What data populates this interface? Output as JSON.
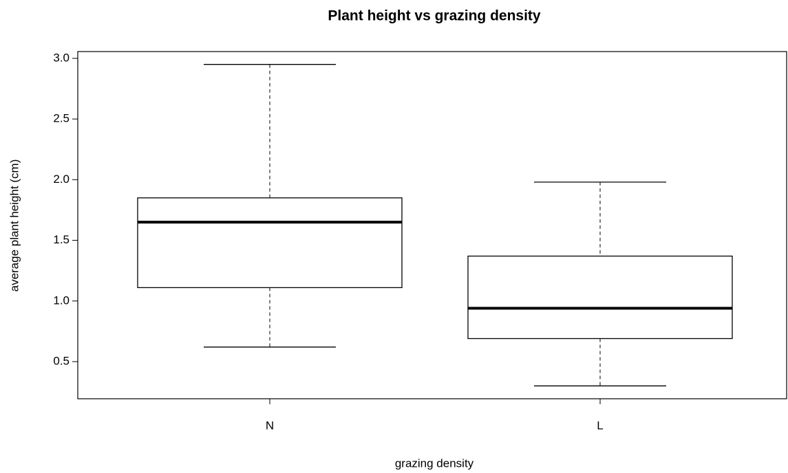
{
  "chart_data": {
    "type": "boxplot",
    "title": "Plant height vs grazing density",
    "x_label": "grazing density",
    "y_label": "average plant height (cm)",
    "categories": [
      "N",
      "L"
    ],
    "boxes": [
      {
        "min": 0.62,
        "q1": 1.11,
        "median": 1.65,
        "q3": 1.85,
        "max": 2.95
      },
      {
        "min": 0.3,
        "q1": 0.69,
        "median": 0.94,
        "q3": 1.37,
        "max": 1.98
      }
    ],
    "color": "#000000",
    "ylim": [
      0.194,
      3.056
    ],
    "yticks": [
      {
        "value": 3,
        "label": "3.0"
      },
      2.5,
      {
        "value": 2,
        "label": "2.0"
      },
      1.5,
      {
        "value": 1,
        "label": "1.0"
      },
      0.5
    ]
  }
}
